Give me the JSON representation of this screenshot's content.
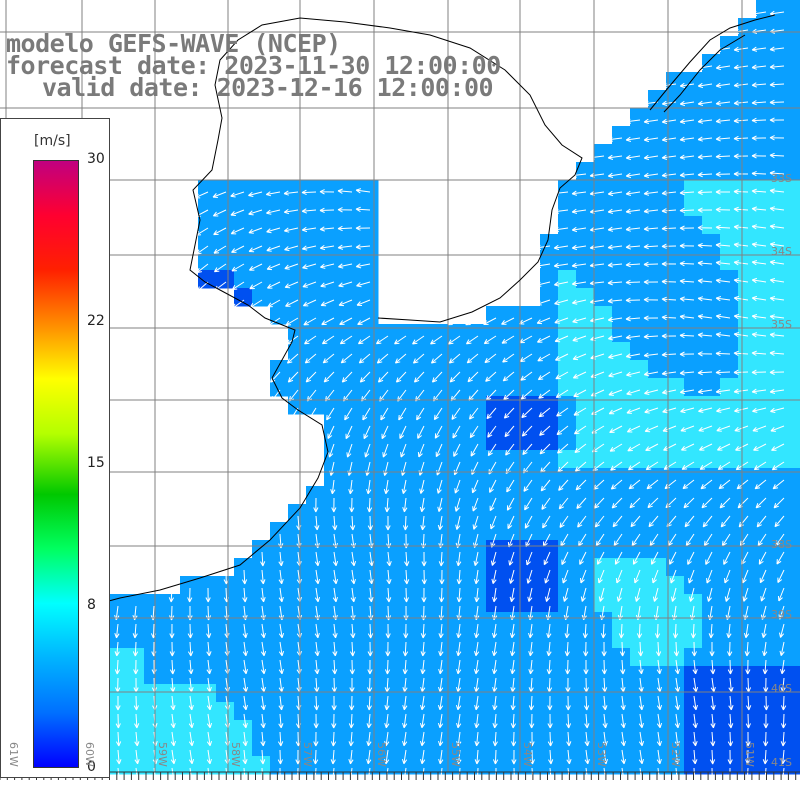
{
  "title": {
    "line1": "modelo GEFS-WAVE (NCEP)",
    "line2": "forecast date: 2023-11-30 12:00:00",
    "line3": "valid date: 2023-12-16 12:00:00"
  },
  "colorbar": {
    "unit": "[m/s]",
    "ticks": [
      "30",
      "22",
      "15",
      "8",
      "0"
    ],
    "tick_values": [
      30,
      22,
      15,
      8,
      0
    ],
    "range": [
      0,
      30
    ],
    "stops": [
      "#0000ff",
      "#0070ff",
      "#00b4ff",
      "#00ffff",
      "#00ff60",
      "#00c800",
      "#b4ff00",
      "#ffff00",
      "#ff8c00",
      "#ff2000",
      "#ff0030",
      "#c00080"
    ]
  },
  "map": {
    "lat_labels": [
      "33S",
      "34S",
      "35S",
      "38S",
      "39S",
      "40S",
      "41S"
    ],
    "lat_label_values": [
      33,
      34,
      35,
      38,
      39,
      40,
      41
    ],
    "lon_labels": [
      "61W",
      "60W",
      "59W",
      "58W",
      "57W",
      "56W",
      "55W",
      "54W",
      "53W",
      "52W",
      "51W"
    ],
    "lon_label_values": [
      61,
      60,
      59,
      58,
      57,
      56,
      55,
      54,
      53,
      52,
      51
    ],
    "colors": {
      "ocean_light": "#33e6ff",
      "ocean_mid": "#0aa0ff",
      "ocean_dark": "#0050f0",
      "land": "#ffffff",
      "grid": "#808080",
      "coast": "#000000",
      "arrow": "#ffffff"
    }
  }
}
